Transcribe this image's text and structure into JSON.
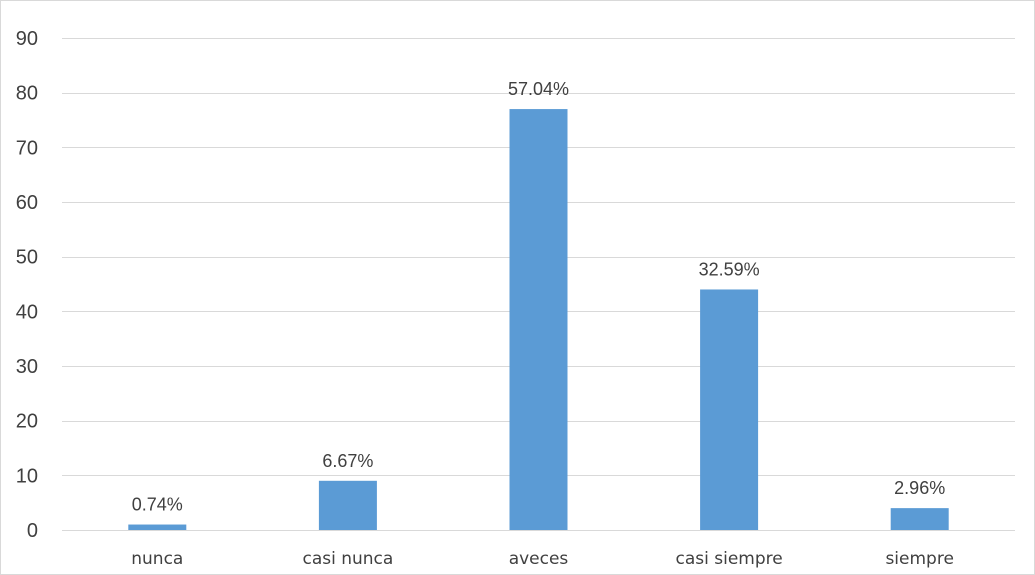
{
  "chart_data": {
    "type": "bar",
    "title": "",
    "xlabel": "",
    "ylabel": "",
    "categories": [
      "nunca",
      "casi nunca",
      "aveces",
      "casi siempre",
      "siempre"
    ],
    "values": [
      1,
      9,
      77,
      44,
      4
    ],
    "data_labels": [
      "0.74%",
      "6.67%",
      "57.04%",
      "32.59%",
      "2.96%"
    ],
    "ylim": [
      0,
      90
    ],
    "yticks": [
      0,
      10,
      20,
      30,
      40,
      50,
      60,
      70,
      80,
      90
    ],
    "grid": true,
    "legend": "none",
    "bar_color": "#5b9bd5"
  }
}
